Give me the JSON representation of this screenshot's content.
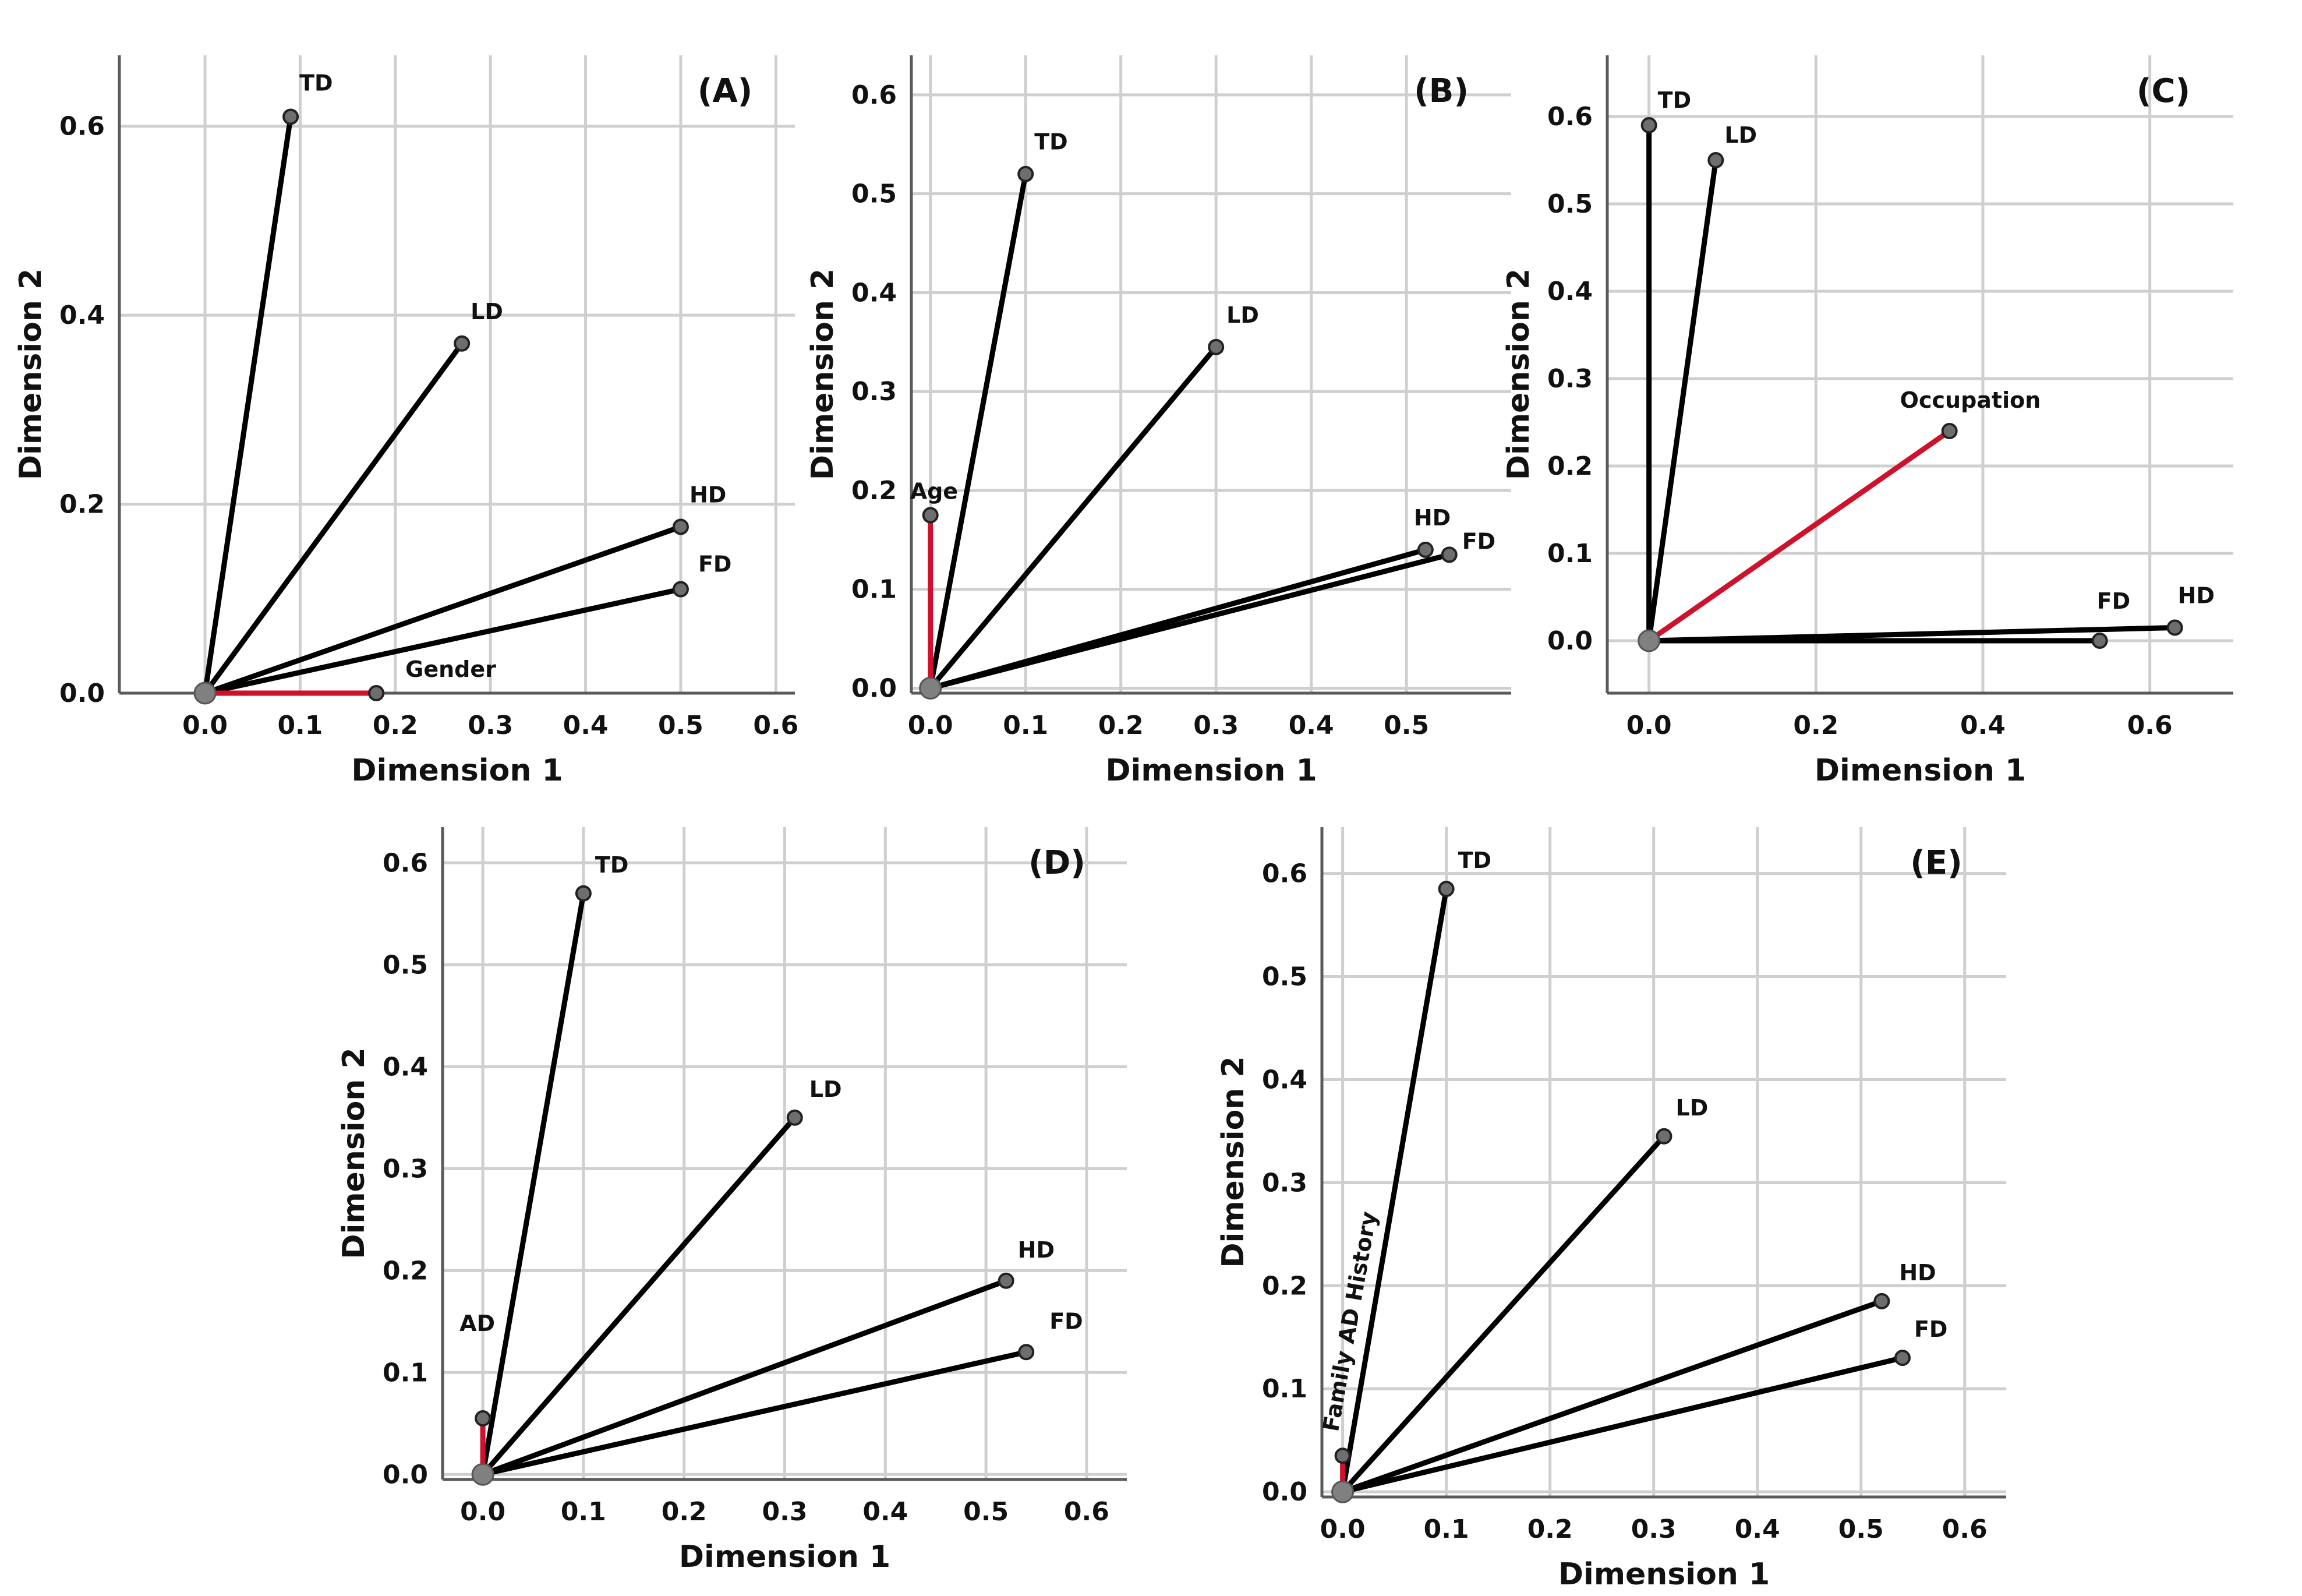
{
  "chart_data": [
    {
      "type": "scatter",
      "panel_label": "(A)",
      "xlabel": "Dimension 1",
      "ylabel": "Dimension 2",
      "xlim": [
        -0.09,
        0.62
      ],
      "ylim": [
        0.0,
        0.675
      ],
      "xticks": [
        "0.0",
        "0.1",
        "0.2",
        "0.3",
        "0.4",
        "0.5",
        "0.6"
      ],
      "yticks": [
        "0.0",
        "0.2",
        "0.4",
        "0.6"
      ],
      "grid": true,
      "vectors": [
        {
          "label": "TD",
          "x": 0.09,
          "y": 0.61,
          "color": "#000000"
        },
        {
          "label": "LD",
          "x": 0.27,
          "y": 0.37,
          "color": "#000000"
        },
        {
          "label": "HD",
          "x": 0.5,
          "y": 0.176,
          "color": "#000000"
        },
        {
          "label": "FD",
          "x": 0.5,
          "y": 0.11,
          "color": "#000000"
        },
        {
          "label": "Gender",
          "x": 0.18,
          "y": 0.0,
          "color": "#d0112b"
        }
      ]
    },
    {
      "type": "scatter",
      "panel_label": "(B)",
      "xlabel": "Dimension 1",
      "ylabel": "Dimension 2",
      "xlim": [
        -0.02,
        0.61
      ],
      "ylim": [
        -0.005,
        0.64
      ],
      "xticks": [
        "0.0",
        "0.1",
        "0.2",
        "0.3",
        "0.4",
        "0.5"
      ],
      "yticks": [
        "0.0",
        "0.1",
        "0.2",
        "0.3",
        "0.4",
        "0.5",
        "0.6"
      ],
      "grid": true,
      "vectors": [
        {
          "label": "TD",
          "x": 0.1,
          "y": 0.52,
          "color": "#000000"
        },
        {
          "label": "LD",
          "x": 0.3,
          "y": 0.345,
          "color": "#000000"
        },
        {
          "label": "HD",
          "x": 0.52,
          "y": 0.14,
          "color": "#000000"
        },
        {
          "label": "FD",
          "x": 0.545,
          "y": 0.135,
          "color": "#000000"
        },
        {
          "label": "Age",
          "x": 0.0,
          "y": 0.175,
          "color": "#d0112b"
        }
      ]
    },
    {
      "type": "scatter",
      "panel_label": "(C)",
      "xlabel": "Dimension 1",
      "ylabel": "Dimension 2",
      "xlim": [
        -0.05,
        0.7
      ],
      "ylim": [
        -0.06,
        0.67
      ],
      "xticks": [
        "0.0",
        "0.2",
        "0.4",
        "0.6"
      ],
      "yticks": [
        "0.0",
        "0.1",
        "0.2",
        "0.3",
        "0.4",
        "0.5",
        "0.6"
      ],
      "grid": true,
      "vectors": [
        {
          "label": "TD",
          "x": 0.0,
          "y": 0.59,
          "color": "#000000"
        },
        {
          "label": "LD",
          "x": 0.08,
          "y": 0.55,
          "color": "#000000"
        },
        {
          "label": "Occupation",
          "x": 0.36,
          "y": 0.24,
          "color": "#d0112b"
        },
        {
          "label": "FD",
          "x": 0.54,
          "y": 0.0,
          "color": "#000000"
        },
        {
          "label": "HD",
          "x": 0.63,
          "y": 0.015,
          "color": "#000000"
        }
      ]
    },
    {
      "type": "scatter",
      "panel_label": "(D)",
      "xlabel": "Dimension 1",
      "ylabel": "Dimension 2",
      "xlim": [
        -0.04,
        0.64
      ],
      "ylim": [
        -0.005,
        0.635
      ],
      "xticks": [
        "0.0",
        "0.1",
        "0.2",
        "0.3",
        "0.4",
        "0.5",
        "0.6"
      ],
      "yticks": [
        "0.0",
        "0.1",
        "0.2",
        "0.3",
        "0.4",
        "0.5",
        "0.6"
      ],
      "grid": true,
      "vectors": [
        {
          "label": "TD",
          "x": 0.1,
          "y": 0.57,
          "color": "#000000"
        },
        {
          "label": "LD",
          "x": 0.31,
          "y": 0.35,
          "color": "#000000"
        },
        {
          "label": "HD",
          "x": 0.52,
          "y": 0.19,
          "color": "#000000"
        },
        {
          "label": "FD",
          "x": 0.54,
          "y": 0.12,
          "color": "#000000"
        },
        {
          "label": "AD",
          "x": 0.0,
          "y": 0.055,
          "color": "#d0112b"
        }
      ]
    },
    {
      "type": "scatter",
      "panel_label": "(E)",
      "xlabel": "Dimension 1",
      "ylabel": "Dimension 2",
      "xlim": [
        -0.02,
        0.64
      ],
      "ylim": [
        -0.005,
        0.645
      ],
      "xticks": [
        "0.0",
        "0.1",
        "0.2",
        "0.3",
        "0.4",
        "0.5",
        "0.6"
      ],
      "yticks": [
        "0.0",
        "0.1",
        "0.2",
        "0.3",
        "0.4",
        "0.5",
        "0.6"
      ],
      "grid": true,
      "vectors": [
        {
          "label": "TD",
          "x": 0.1,
          "y": 0.585,
          "color": "#000000"
        },
        {
          "label": "LD",
          "x": 0.31,
          "y": 0.345,
          "color": "#000000"
        },
        {
          "label": "HD",
          "x": 0.52,
          "y": 0.185,
          "color": "#000000"
        },
        {
          "label": "FD",
          "x": 0.54,
          "y": 0.13,
          "color": "#000000"
        },
        {
          "label": "Family AD History",
          "x": 0.0,
          "y": 0.035,
          "color": "#d0112b"
        }
      ]
    }
  ]
}
